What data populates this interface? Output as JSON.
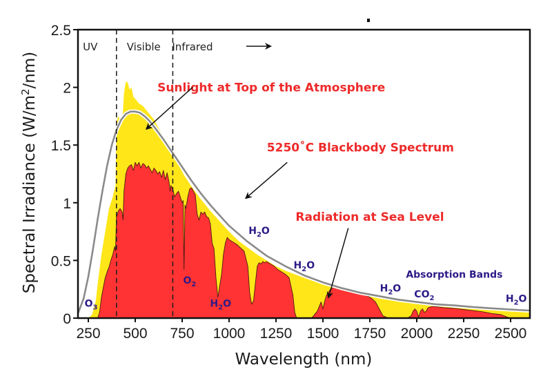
{
  "chart_data": {
    "type": "area",
    "title": "",
    "xlabel": "Wavelength (nm)",
    "ylabel_parts": {
      "pre": "Spectral Irradiance (W/m",
      "sup": "2",
      "post": "/nm)"
    },
    "xlim": [
      195,
      2600
    ],
    "ylim": [
      0,
      2.5
    ],
    "x_ticks": [
      250,
      500,
      750,
      1000,
      1250,
      1500,
      1750,
      2000,
      2250,
      2500
    ],
    "y_ticks": [
      0,
      0.5,
      1,
      1.5,
      2,
      2.5
    ],
    "y_tick_labels": [
      "0",
      "0.5",
      "1",
      "1.5",
      "2",
      "2.5"
    ],
    "grid": false,
    "regions": [
      {
        "label": "UV",
        "x": 260
      },
      {
        "label": "Visible",
        "x": 545
      },
      {
        "label": "Infrared",
        "x": 805
      }
    ],
    "region_boundaries": [
      400,
      700
    ],
    "colors": {
      "top_of_atmosphere": "#ffe619",
      "sea_level": "#ff3333",
      "blackbody": "#8a8a8a",
      "annotation": "#ee2a2a",
      "absorber": "#2e1a87"
    },
    "series": [
      {
        "name": "Sunlight at Top of the Atmosphere",
        "x": [
          250,
          270,
          290,
          300,
          320,
          340,
          360,
          380,
          395,
          400,
          410,
          420,
          430,
          440,
          450,
          460,
          470,
          480,
          490,
          500,
          520,
          540,
          560,
          580,
          600,
          620,
          640,
          660,
          680,
          700,
          720,
          740,
          760,
          780,
          800,
          850,
          900,
          950,
          1000,
          1050,
          1100,
          1150,
          1200,
          1250,
          1300,
          1350,
          1400,
          1450,
          1500,
          1550,
          1600,
          1650,
          1700,
          1750,
          1800,
          1850,
          1900,
          1950,
          2000,
          2100,
          2200,
          2300,
          2400,
          2500,
          2600
        ],
        "values": [
          0.0,
          0.03,
          0.15,
          0.3,
          0.55,
          0.75,
          0.95,
          1.05,
          1.15,
          1.7,
          1.75,
          1.72,
          1.68,
          1.95,
          2.05,
          2.04,
          1.98,
          2.0,
          1.92,
          1.9,
          1.86,
          1.84,
          1.8,
          1.76,
          1.72,
          1.66,
          1.6,
          1.55,
          1.48,
          1.42,
          1.36,
          1.3,
          1.24,
          1.19,
          1.14,
          1.03,
          0.93,
          0.84,
          0.75,
          0.67,
          0.61,
          0.55,
          0.5,
          0.45,
          0.41,
          0.38,
          0.35,
          0.32,
          0.29,
          0.27,
          0.25,
          0.23,
          0.21,
          0.19,
          0.17,
          0.16,
          0.15,
          0.14,
          0.13,
          0.11,
          0.09,
          0.08,
          0.07,
          0.06,
          0.05
        ]
      },
      {
        "name": "5250°C Blackbody Spectrum",
        "temperature_c": 5250,
        "peak": {
          "x": 525,
          "y": 1.79
        },
        "x": [
          195,
          225,
          250,
          275,
          300,
          325,
          350,
          375,
          400,
          425,
          450,
          475,
          500,
          525,
          550,
          575,
          600,
          650,
          700,
          750,
          800,
          850,
          900,
          950,
          1000,
          1100,
          1200,
          1300,
          1400,
          1500,
          1600,
          1700,
          1800,
          1900,
          2000,
          2100,
          2200,
          2300,
          2400,
          2500,
          2600
        ],
        "values": [
          0.04,
          0.17,
          0.36,
          0.6,
          0.86,
          1.1,
          1.32,
          1.5,
          1.63,
          1.72,
          1.77,
          1.79,
          1.79,
          1.78,
          1.75,
          1.71,
          1.66,
          1.55,
          1.43,
          1.31,
          1.19,
          1.08,
          0.98,
          0.89,
          0.8,
          0.66,
          0.54,
          0.45,
          0.37,
          0.31,
          0.26,
          0.22,
          0.19,
          0.16,
          0.14,
          0.12,
          0.11,
          0.096,
          0.085,
          0.075,
          0.066
        ]
      },
      {
        "name": "Radiation at Sea Level",
        "x": [
          300,
          310,
          320,
          330,
          340,
          350,
          360,
          370,
          380,
          390,
          395,
          400,
          405,
          410,
          420,
          430,
          435,
          440,
          450,
          460,
          470,
          480,
          490,
          500,
          510,
          520,
          530,
          540,
          550,
          560,
          570,
          580,
          590,
          600,
          610,
          620,
          630,
          640,
          650,
          660,
          670,
          680,
          686,
          690,
          700,
          710,
          720,
          730,
          740,
          750,
          755,
          760,
          765,
          770,
          780,
          790,
          800,
          810,
          820,
          830,
          840,
          850,
          860,
          870,
          880,
          890,
          900,
          910,
          920,
          930,
          940,
          950,
          960,
          970,
          980,
          990,
          1000,
          1020,
          1040,
          1060,
          1080,
          1100,
          1110,
          1120,
          1130,
          1140,
          1150,
          1160,
          1170,
          1180,
          1190,
          1200,
          1220,
          1240,
          1260,
          1280,
          1300,
          1320,
          1340,
          1350,
          1360,
          1380,
          1400,
          1420,
          1440,
          1450,
          1460,
          1470,
          1480,
          1490,
          1500,
          1510,
          1520,
          1540,
          1560,
          1580,
          1600,
          1620,
          1640,
          1660,
          1680,
          1700,
          1720,
          1740,
          1760,
          1780,
          1800,
          1820,
          1850,
          1900,
          1950,
          1960,
          1970,
          1980,
          1990,
          2000,
          2010,
          2020,
          2030,
          2040,
          2050,
          2060,
          2080,
          2100,
          2150,
          2200,
          2250,
          2300,
          2350,
          2400,
          2450,
          2480,
          2500
        ],
        "values": [
          0.0,
          0.05,
          0.18,
          0.27,
          0.35,
          0.4,
          0.44,
          0.5,
          0.55,
          0.62,
          0.58,
          0.88,
          0.9,
          0.93,
          0.95,
          0.92,
          0.85,
          1.1,
          1.25,
          1.3,
          1.32,
          1.33,
          1.28,
          1.35,
          1.32,
          1.35,
          1.3,
          1.34,
          1.33,
          1.3,
          1.32,
          1.29,
          1.26,
          1.3,
          1.28,
          1.25,
          1.27,
          1.22,
          1.28,
          1.2,
          1.26,
          1.18,
          1.1,
          1.15,
          1.12,
          1.05,
          1.08,
          1.1,
          1.05,
          1.0,
          1.02,
          0.42,
          0.98,
          0.95,
          1.05,
          1.12,
          1.13,
          1.1,
          1.07,
          0.9,
          0.85,
          0.92,
          0.9,
          0.92,
          0.88,
          0.87,
          0.82,
          0.65,
          0.6,
          0.35,
          0.18,
          0.28,
          0.38,
          0.55,
          0.65,
          0.7,
          0.68,
          0.66,
          0.64,
          0.61,
          0.58,
          0.45,
          0.22,
          0.12,
          0.15,
          0.3,
          0.45,
          0.48,
          0.47,
          0.49,
          0.48,
          0.49,
          0.47,
          0.45,
          0.42,
          0.4,
          0.38,
          0.35,
          0.2,
          0.05,
          0.0,
          0.0,
          0.0,
          0.0,
          0.0,
          0.02,
          0.04,
          0.06,
          0.1,
          0.14,
          0.08,
          0.15,
          0.2,
          0.25,
          0.27,
          0.26,
          0.25,
          0.24,
          0.23,
          0.23,
          0.22,
          0.21,
          0.2,
          0.19,
          0.17,
          0.14,
          0.08,
          0.02,
          0.0,
          0.0,
          0.0,
          0.01,
          0.02,
          0.06,
          0.08,
          0.06,
          0.01,
          0.06,
          0.08,
          0.05,
          0.06,
          0.09,
          0.1,
          0.1,
          0.09,
          0.085,
          0.075,
          0.065,
          0.055,
          0.04,
          0.03,
          0.01,
          0.0
        ]
      }
    ],
    "annotations": [
      {
        "id": "toa",
        "text": "Sunlight at Top of the Atmosphere",
        "text_at": [
          1225,
          2.0
        ],
        "arrow_from": [
          805,
          2.0
        ],
        "arrow_to": [
          560,
          1.64
        ]
      },
      {
        "id": "blackbody",
        "text": "5250˚C Blackbody Spectrum",
        "text_at": [
          1700,
          1.48
        ],
        "arrow_from": [
          1310,
          1.35
        ],
        "arrow_to": [
          1090,
          1.04
        ]
      },
      {
        "id": "sealevel",
        "text": "Radiation at Sea Level",
        "text_at": [
          1750,
          0.88
        ],
        "arrow_from": [
          1635,
          0.78
        ],
        "arrow_to": [
          1530,
          0.18
        ]
      }
    ],
    "absorbers": [
      {
        "species": "O",
        "sub": "3",
        "x": 265,
        "y": 0.1
      },
      {
        "species": "O",
        "sub": "2",
        "x": 790,
        "y": 0.3
      },
      {
        "species": "H",
        "sub": "2",
        "tail": "O",
        "x": 955,
        "y": 0.1
      },
      {
        "species": "H",
        "sub": "2",
        "tail": "O",
        "x": 1160,
        "y": 0.73
      },
      {
        "species": "H",
        "sub": "2",
        "tail": "O",
        "x": 1400,
        "y": 0.43
      },
      {
        "species": "H",
        "sub": "2",
        "tail": "O",
        "x": 1860,
        "y": 0.23
      },
      {
        "species": "C",
        "pre": "CO",
        "sub": "2",
        "x": 2040,
        "y": 0.18
      },
      {
        "species": "H",
        "sub": "2",
        "tail": "O",
        "x": 2530,
        "y": 0.14
      }
    ],
    "absorption_bands_label": {
      "text": "Absorption Bands",
      "x": 2200,
      "y": 0.35
    },
    "infrared_arrow": true
  }
}
